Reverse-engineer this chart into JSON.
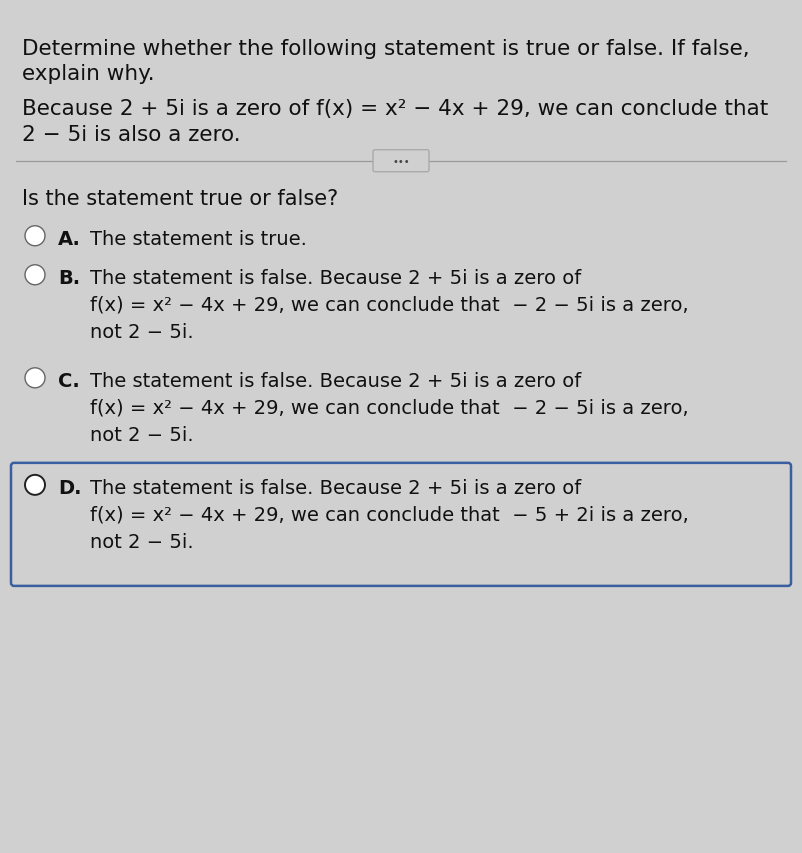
{
  "bg_color": "#d0d0d0",
  "top_bar_color": "#4a8a9a",
  "title_line1": "Determine whether the following statement is true or false. If false,",
  "title_line2": "explain why.",
  "statement_line1": "Because 2 + 5i is a zero of f(x) = x² − 4x + 29, we can conclude that",
  "statement_line2": "2 − 5i is also a zero.",
  "question": "Is the statement true or false?",
  "option_A_label": "A.",
  "option_A_text": "The statement is true.",
  "option_B_label": "B.",
  "option_B_line1": "The statement is false. Because 2 + 5i is a zero of",
  "option_B_line2": "f(x) = x² − 4x + 29, we can conclude that  − 2 − 5i is a zero,",
  "option_B_line3": "not 2 − 5i.",
  "option_C_label": "C.",
  "option_C_line1": "The statement is false. Because 2 + 5i is a zero of",
  "option_C_line2": "f(x) = x² − 4x + 29, we can conclude that  − 2 − 5i is a zero,",
  "option_C_line3": "not 2 − 5i.",
  "option_D_label": "D.",
  "option_D_line1": "The statement is false. Because 2 + 5i is a zero of",
  "option_D_line2": "f(x) = x² − 4x + 29, we can conclude that  − 5 + 2i is a zero,",
  "option_D_line3": "not 2 − 5i.",
  "selected_option": "D",
  "font_size_header": 15.5,
  "font_size_statement": 15.5,
  "font_size_question": 15.0,
  "font_size_options": 14.0,
  "text_color": "#111111",
  "circle_edge_color": "#666666",
  "selected_circle_color": "#222222",
  "box_color": "#3a5fa0",
  "separator_color": "#999999",
  "dots_color": "#444444"
}
